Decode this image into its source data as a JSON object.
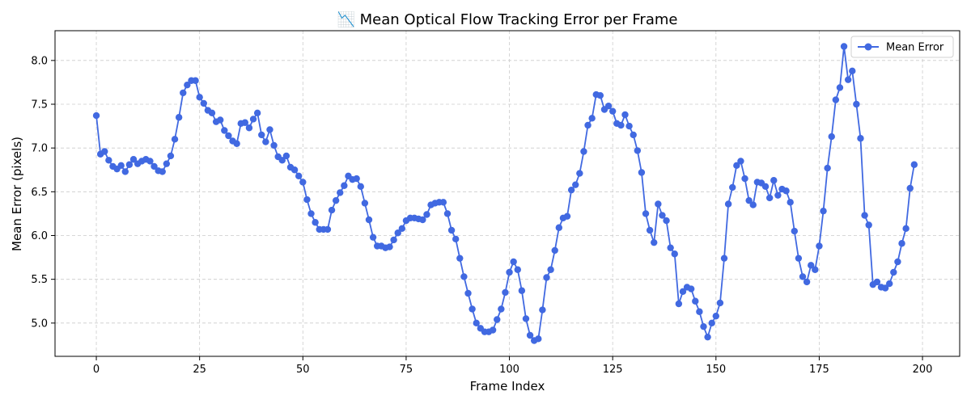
{
  "chart_data": {
    "type": "line",
    "title": "📉 Mean Optical Flow Tracking Error per Frame",
    "xlabel": "Frame Index",
    "ylabel": "Mean Error (pixels)",
    "xlim": [
      -10,
      209
    ],
    "ylim": [
      4.62,
      8.34
    ],
    "xticks": [
      0,
      25,
      50,
      75,
      100,
      125,
      150,
      175,
      200
    ],
    "yticks": [
      5.0,
      5.5,
      6.0,
      6.5,
      7.0,
      7.5,
      8.0
    ],
    "xtick_labels": [
      "0",
      "25",
      "50",
      "75",
      "100",
      "125",
      "150",
      "175",
      "200"
    ],
    "ytick_labels": [
      "5.0",
      "5.5",
      "6.0",
      "6.5",
      "7.0",
      "7.5",
      "8.0"
    ],
    "grid": true,
    "grid_style": "dashed",
    "legend_position": "top-right",
    "colors": {
      "series": "#4169e1",
      "grid": "#cccccc"
    },
    "series": [
      {
        "name": "Mean Error",
        "marker": "circle",
        "x_start": 0,
        "x_step": 1,
        "values": [
          7.37,
          6.93,
          6.96,
          6.86,
          6.79,
          6.76,
          6.8,
          6.73,
          6.81,
          6.87,
          6.82,
          6.85,
          6.87,
          6.85,
          6.79,
          6.74,
          6.73,
          6.82,
          6.91,
          7.1,
          7.35,
          7.63,
          7.72,
          7.77,
          7.77,
          7.58,
          7.51,
          7.43,
          7.4,
          7.3,
          7.32,
          7.2,
          7.14,
          7.08,
          7.05,
          7.28,
          7.29,
          7.23,
          7.33,
          7.4,
          7.15,
          7.07,
          7.21,
          7.03,
          6.9,
          6.86,
          6.91,
          6.78,
          6.75,
          6.68,
          6.61,
          6.41,
          6.25,
          6.15,
          6.07,
          6.07,
          6.07,
          6.29,
          6.4,
          6.49,
          6.57,
          6.68,
          6.64,
          6.65,
          6.56,
          6.37,
          6.18,
          5.98,
          5.88,
          5.88,
          5.86,
          5.87,
          5.95,
          6.03,
          6.08,
          6.17,
          6.2,
          6.2,
          6.19,
          6.18,
          6.24,
          6.35,
          6.37,
          6.38,
          6.38,
          6.25,
          6.06,
          5.96,
          5.74,
          5.53,
          5.34,
          5.16,
          5.0,
          4.94,
          4.9,
          4.9,
          4.92,
          5.04,
          5.16,
          5.35,
          5.58,
          5.7,
          5.61,
          5.37,
          5.05,
          4.86,
          4.8,
          4.82,
          5.15,
          5.52,
          5.61,
          5.83,
          6.09,
          6.2,
          6.22,
          6.52,
          6.58,
          6.71,
          6.96,
          7.26,
          7.34,
          7.61,
          7.6,
          7.44,
          7.48,
          7.42,
          7.28,
          7.26,
          7.38,
          7.25,
          7.15,
          6.97,
          6.72,
          6.25,
          6.06,
          5.92,
          6.36,
          6.23,
          6.17,
          5.86,
          5.79,
          5.22,
          5.36,
          5.41,
          5.39,
          5.25,
          5.13,
          4.96,
          4.84,
          5.0,
          5.08,
          5.23,
          5.74,
          6.36,
          6.55,
          6.8,
          6.85,
          6.65,
          6.4,
          6.35,
          6.61,
          6.6,
          6.56,
          6.43,
          6.63,
          6.46,
          6.53,
          6.51,
          6.38,
          6.05,
          5.74,
          5.53,
          5.47,
          5.66,
          5.61,
          5.88,
          6.28,
          6.77,
          7.13,
          7.55,
          7.69,
          8.16,
          7.78,
          7.88,
          7.5,
          7.11,
          6.23,
          6.12,
          5.44,
          5.47,
          5.41,
          5.4,
          5.45,
          5.58,
          5.7,
          5.91,
          6.08,
          6.54,
          6.81
        ]
      }
    ]
  }
}
